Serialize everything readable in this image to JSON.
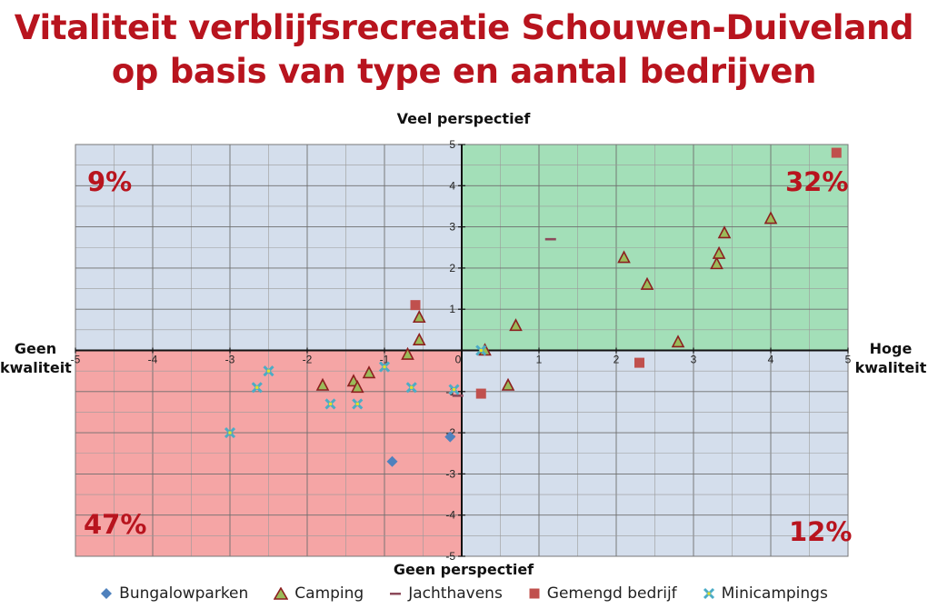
{
  "chart_data": {
    "type": "scatter",
    "title_lines": [
      "Vitaliteit verblijfsrecreatie Schouwen-Duiveland",
      "op basis van type en aantal bedrijven"
    ],
    "axis_labels": {
      "top": "Veel perspectief",
      "bottom": "Geen perspectief",
      "left": [
        "Geen",
        "kwaliteit"
      ],
      "right": [
        "Hoge",
        "kwaliteit"
      ]
    },
    "xlim": [
      -5,
      5
    ],
    "ylim": [
      -5,
      5
    ],
    "x_ticks": [
      "-5",
      "-4",
      "-3",
      "-2",
      "-1",
      "0",
      "1",
      "2",
      "3",
      "4",
      "5"
    ],
    "y_ticks": [
      "5",
      "4",
      "3",
      "2",
      "1",
      "0",
      "-1",
      "-2",
      "-3",
      "-4",
      "-5"
    ],
    "grid": true,
    "quadrants": {
      "top_left": {
        "label": "9%",
        "color": "#d4deec"
      },
      "top_right": {
        "label": "32%",
        "color": "#a3dfb8"
      },
      "bottom_left": {
        "label": "47%",
        "color": "#f5a5a5"
      },
      "bottom_right": {
        "label": "12%",
        "color": "#d4deec"
      }
    },
    "legend_position": "bottom",
    "series": [
      {
        "name": "Bungalowparken",
        "marker": "diamond",
        "color": "#4f81bd",
        "points": [
          [
            -0.9,
            -2.7
          ],
          [
            -0.15,
            -2.1
          ]
        ]
      },
      {
        "name": "Camping",
        "marker": "triangle",
        "color": "#9bbb59",
        "points": [
          [
            -1.8,
            -0.85
          ],
          [
            -1.4,
            -0.75
          ],
          [
            -1.35,
            -0.9
          ],
          [
            -1.2,
            -0.55
          ],
          [
            -0.7,
            -0.1
          ],
          [
            -0.55,
            0.25
          ],
          [
            -0.55,
            0.8
          ],
          [
            0.3,
            0.0
          ],
          [
            0.6,
            -0.85
          ],
          [
            0.7,
            0.6
          ],
          [
            2.1,
            2.25
          ],
          [
            2.4,
            1.6
          ],
          [
            2.8,
            0.2
          ],
          [
            3.3,
            2.1
          ],
          [
            3.33,
            2.35
          ],
          [
            3.4,
            2.85
          ],
          [
            4.0,
            3.2
          ]
        ]
      },
      {
        "name": "Jachthavens",
        "marker": "dash",
        "color": "#8c4a5a",
        "points": [
          [
            1.15,
            2.7
          ],
          [
            -0.05,
            -1.1
          ]
        ]
      },
      {
        "name": "Gemengd bedrijf",
        "marker": "square",
        "color": "#c0504d",
        "points": [
          [
            -0.6,
            1.1
          ],
          [
            0.25,
            -1.05
          ],
          [
            2.3,
            -0.3
          ],
          [
            4.85,
            4.8
          ]
        ]
      },
      {
        "name": "Minicampings",
        "marker": "x",
        "color": "#4bacc6",
        "points": [
          [
            -3.0,
            -2.0
          ],
          [
            -2.65,
            -0.9
          ],
          [
            -2.5,
            -0.5
          ],
          [
            -1.7,
            -1.3
          ],
          [
            -1.35,
            -1.3
          ],
          [
            -1.0,
            -0.4
          ],
          [
            -0.65,
            -0.9
          ],
          [
            -0.1,
            -0.95
          ],
          [
            0.25,
            0.0
          ]
        ]
      }
    ]
  }
}
